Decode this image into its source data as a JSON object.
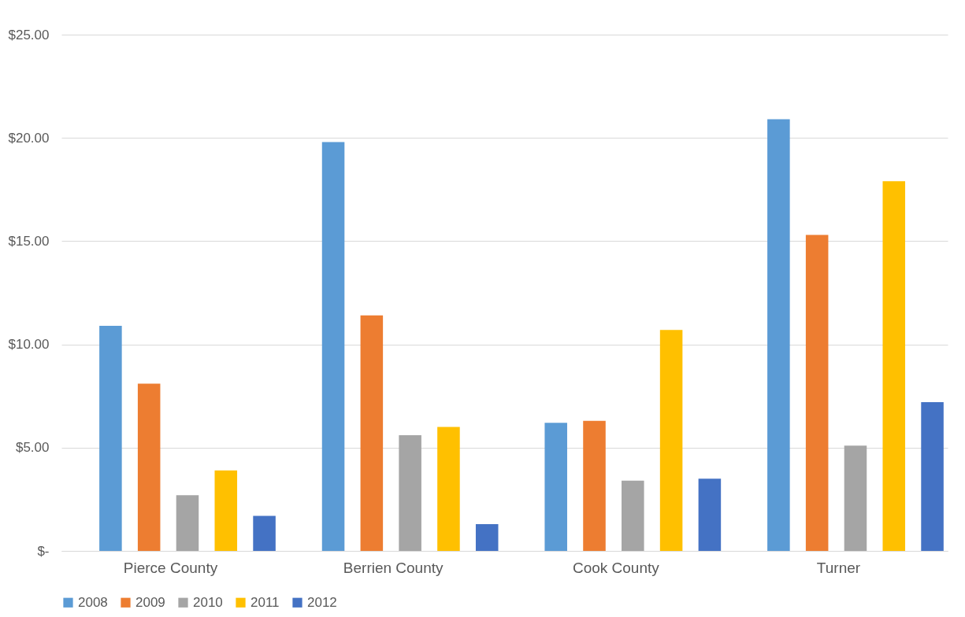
{
  "chart_data": {
    "type": "bar",
    "categories": [
      "Pierce County",
      "Berrien County",
      "Cook County",
      "Turner"
    ],
    "series": [
      {
        "name": "2008",
        "color": "#5b9bd5",
        "values": [
          10.9,
          19.8,
          6.2,
          20.9
        ]
      },
      {
        "name": "2009",
        "color": "#ed7d31",
        "values": [
          8.1,
          11.4,
          6.3,
          15.3
        ]
      },
      {
        "name": "2010",
        "color": "#a5a5a5",
        "values": [
          2.7,
          5.6,
          3.4,
          5.1
        ]
      },
      {
        "name": "2011",
        "color": "#ffc000",
        "values": [
          3.9,
          6.0,
          10.7,
          17.9
        ]
      },
      {
        "name": "2012",
        "color": "#4472c4",
        "values": [
          1.7,
          1.3,
          3.5,
          7.2
        ]
      }
    ],
    "ylim": [
      0,
      25
    ],
    "yticks": [
      {
        "value": 0,
        "label": "$-"
      },
      {
        "value": 5,
        "label": "$5.00"
      },
      {
        "value": 10,
        "label": "$10.00"
      },
      {
        "value": 15,
        "label": "$15.00"
      },
      {
        "value": 20,
        "label": "$20.00"
      },
      {
        "value": 25,
        "label": "$25.00"
      }
    ],
    "grid": "y",
    "legend": "bottom"
  }
}
